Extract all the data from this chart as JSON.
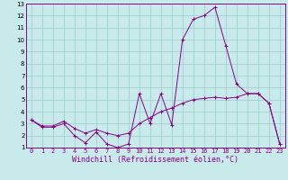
{
  "xlabel": "Windchill (Refroidissement éolien,°C)",
  "x": [
    0,
    1,
    2,
    3,
    4,
    5,
    6,
    7,
    8,
    9,
    10,
    11,
    12,
    13,
    14,
    15,
    16,
    17,
    18,
    19,
    20,
    21,
    22,
    23
  ],
  "line_peak": [
    3.3,
    2.7,
    2.7,
    3.0,
    2.0,
    1.4,
    2.3,
    1.3,
    1.0,
    1.3,
    5.5,
    3.0,
    5.5,
    2.9,
    10.0,
    11.7,
    12.0,
    12.7,
    9.5,
    6.3,
    5.5,
    5.5,
    4.7,
    1.3
  ],
  "line_flat": [
    3.3,
    2.8,
    2.8,
    3.2,
    2.6,
    2.2,
    2.5,
    2.2,
    2.0,
    2.2,
    3.0,
    3.5,
    4.0,
    4.3,
    4.7,
    5.0,
    5.1,
    5.2,
    5.1,
    5.2,
    5.5,
    5.5,
    4.7,
    1.3
  ],
  "line_color": "#880088",
  "bg_color": "#c8eaea",
  "grid_color": "#99cccc",
  "ylim": [
    1,
    13
  ],
  "xlim": [
    -0.5,
    23.5
  ],
  "yticks": [
    1,
    2,
    3,
    4,
    5,
    6,
    7,
    8,
    9,
    10,
    11,
    12,
    13
  ],
  "xticks": [
    0,
    1,
    2,
    3,
    4,
    5,
    6,
    7,
    8,
    9,
    10,
    11,
    12,
    13,
    14,
    15,
    16,
    17,
    18,
    19,
    20,
    21,
    22,
    23
  ],
  "tick_fontsize": 5.0,
  "xlabel_fontsize": 6.0
}
